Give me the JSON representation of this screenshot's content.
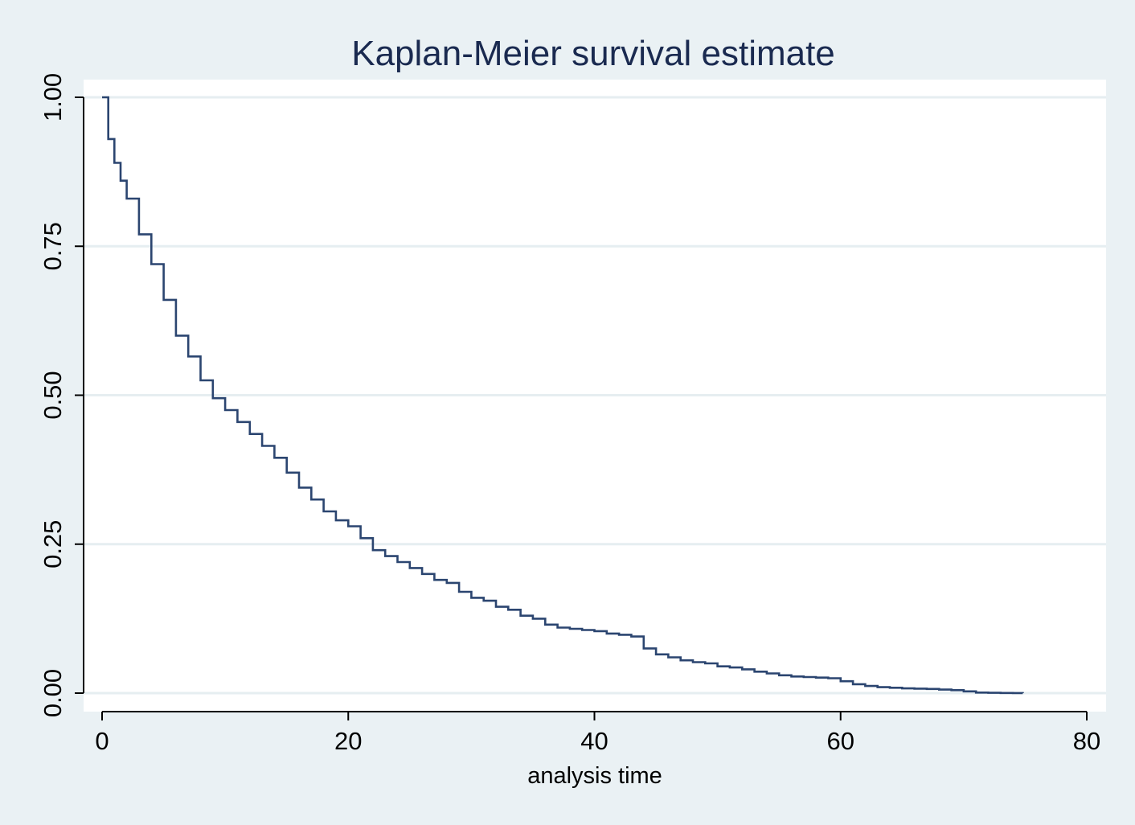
{
  "chart_data": {
    "type": "line",
    "title": "Kaplan-Meier survival estimate",
    "xlabel": "analysis time",
    "ylabel": "",
    "xlim": [
      0,
      80
    ],
    "ylim": [
      0,
      1
    ],
    "xticks": [
      0,
      20,
      40,
      60,
      80
    ],
    "xtick_labels": [
      "0",
      "20",
      "40",
      "60",
      "80"
    ],
    "yticks": [
      0,
      0.25,
      0.5,
      0.75,
      1
    ],
    "ytick_labels": [
      "0.00",
      "0.25",
      "0.50",
      "0.75",
      "1.00"
    ],
    "grid": true,
    "colors": {
      "line": "#2b4570",
      "grid": "#e6eef1",
      "plot_bg": "#ffffff",
      "outer_bg": "#eaf1f4",
      "title": "#1a2a50"
    },
    "series": [
      {
        "step": true,
        "x": [
          0,
          0.5,
          1,
          1.5,
          2,
          3,
          4,
          5,
          6,
          7,
          8,
          9,
          10,
          11,
          12,
          13,
          14,
          15,
          16,
          17,
          18,
          19,
          20,
          21,
          22,
          23,
          24,
          25,
          26,
          27,
          28,
          29,
          30,
          31,
          32,
          33,
          34,
          35,
          36,
          37,
          38,
          39,
          40,
          41,
          42,
          43,
          44,
          45,
          46,
          47,
          48,
          49,
          50,
          51,
          52,
          53,
          54,
          55,
          56,
          57,
          58,
          59,
          60,
          61,
          62,
          63,
          64,
          65,
          66,
          67,
          68,
          69,
          70,
          71,
          72,
          73,
          74,
          74.8
        ],
        "y": [
          1.0,
          0.93,
          0.89,
          0.86,
          0.83,
          0.77,
          0.72,
          0.66,
          0.6,
          0.565,
          0.525,
          0.495,
          0.475,
          0.455,
          0.435,
          0.415,
          0.395,
          0.37,
          0.345,
          0.325,
          0.305,
          0.29,
          0.28,
          0.26,
          0.24,
          0.23,
          0.22,
          0.21,
          0.2,
          0.19,
          0.185,
          0.17,
          0.16,
          0.155,
          0.145,
          0.14,
          0.13,
          0.125,
          0.115,
          0.11,
          0.108,
          0.106,
          0.104,
          0.1,
          0.098,
          0.095,
          0.075,
          0.065,
          0.06,
          0.055,
          0.052,
          0.05,
          0.045,
          0.043,
          0.04,
          0.036,
          0.033,
          0.03,
          0.028,
          0.027,
          0.026,
          0.025,
          0.02,
          0.015,
          0.012,
          0.01,
          0.009,
          0.008,
          0.0075,
          0.007,
          0.006,
          0.005,
          0.003,
          0.001,
          0.0005,
          0.0003,
          0.0001,
          0.0
        ]
      }
    ]
  }
}
